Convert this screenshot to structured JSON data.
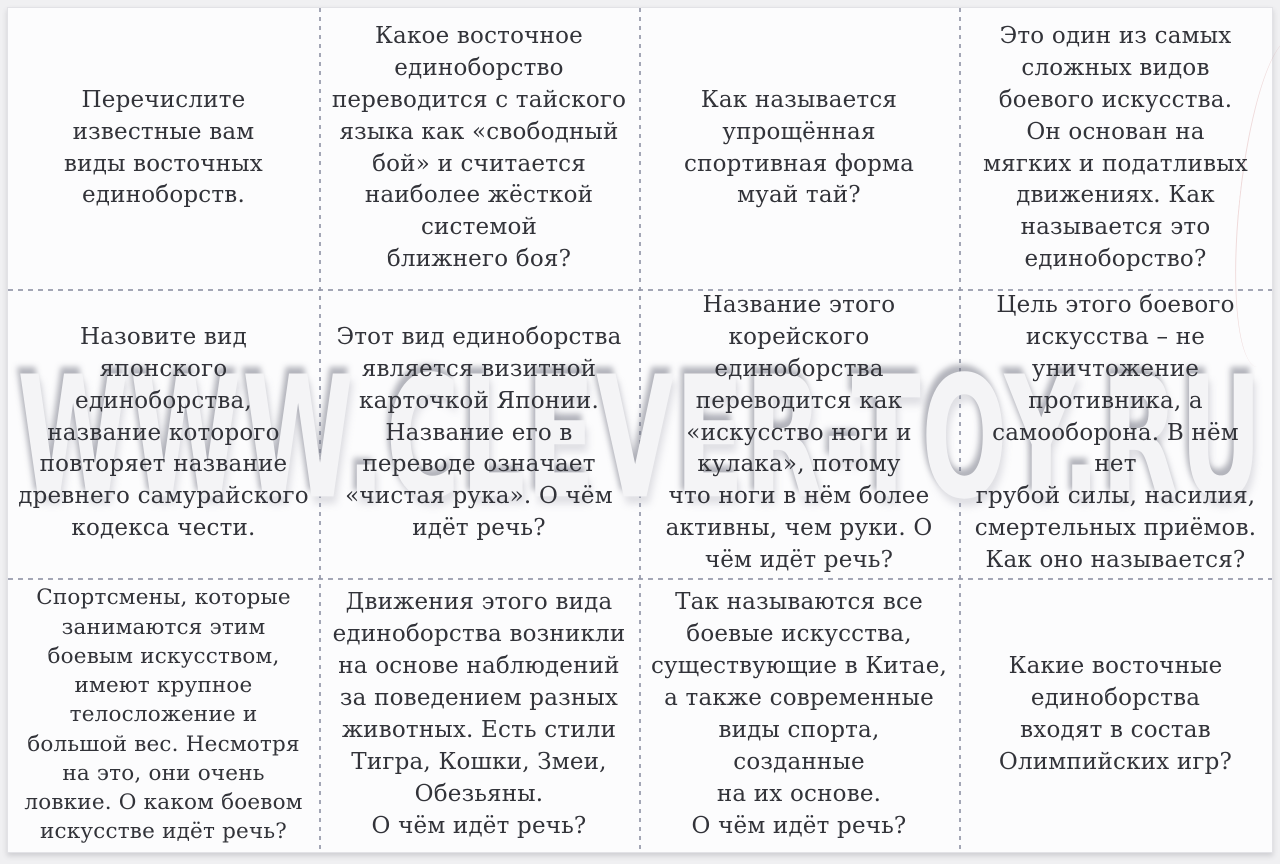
{
  "watermark": {
    "text": "WWW.CLEVER-TOY.RU"
  },
  "colors": {
    "paper": "#fcfcfd",
    "text": "#323339",
    "cut_line": "#9397a8",
    "watermark_fill": "#f4f4f6"
  },
  "cards": [
    {
      "text": "Перечислите\nизвестные вам\nвиды восточных\nединоборств."
    },
    {
      "text": "Какое восточное\nединоборство\nпереводится с тайского\nязыка как «свободный\nбой» и считается\nнаиболее жёсткой\nсистемой\nближнего боя?"
    },
    {
      "text": "Как называется\nупрощённая\nспортивная форма\nмуай тай?"
    },
    {
      "text": "Это один из самых\nсложных видов\nбоевого искусства.\nОн основан на\nмягких и податливых\nдвижениях. Как\nназывается это\nединоборство?"
    },
    {
      "text": "Назовите вид\nяпонского\nединоборства,\nназвание которого\nповторяет название\nдревнего самурайского\nкодекса чести."
    },
    {
      "text": "Этот вид единоборства\nявляется визитной\nкарточкой Японии.\nНазвание его в\nпереводе означает\n«чистая рука». О чём\nидёт речь?"
    },
    {
      "text": "Название этого\nкорейского единоборства\nпереводится как\n«искусство ноги и\nкулака», потому\nчто ноги в нём более\nактивны, чем руки. О\nчём идёт речь?"
    },
    {
      "text": "Цель этого боевого\nискусства – не\nуничтожение\nпротивника, а\nсамооборона. В нём нет\nгрубой силы, насилия,\nсмертельных приёмов.\nКак оно называется?"
    },
    {
      "text": "Спортсмены, которые\nзанимаются этим\nбоевым искусством,\nимеют крупное\nтелосложение и\nбольшой вес. Несмотря\nна это, они очень\nловкие. О каком боевом\nискусстве идёт речь?"
    },
    {
      "text": "Движения этого вида\nединоборства возникли\nна основе наблюдений\nза поведением разных\nживотных. Есть стили\nТигра, Кошки, Змеи,\nОбезьяны.\nО чём идёт речь?"
    },
    {
      "text": "Так называются все\nбоевые искусства,\nсуществующие в Китае,\nа также современные\nвиды спорта, созданные\nна их основе.\nО чём идёт речь?"
    },
    {
      "text": "Какие восточные\nединоборства\nвходят в состав\nОлимпийских игр?"
    }
  ]
}
